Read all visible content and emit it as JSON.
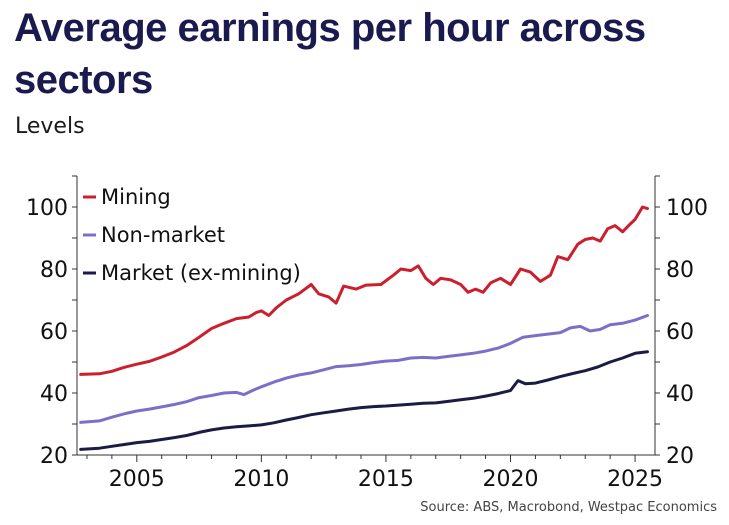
{
  "header": {
    "title": "Average earnings per hour across sectors",
    "subtitle": "Levels"
  },
  "footer": {
    "source": "Source: ABS, Macrobond, Westpac Economics"
  },
  "chart_data": {
    "type": "line",
    "title": "Average earnings per hour across sectors",
    "subtitle": "Levels",
    "xlim": [
      2002.6,
      2025.8
    ],
    "ylim": [
      20,
      110
    ],
    "x_ticks": [
      2005,
      2010,
      2015,
      2020,
      2025
    ],
    "y_ticks": [
      20,
      40,
      60,
      80,
      100
    ],
    "grid": false,
    "legend_position": "top-left",
    "series": [
      {
        "name": "Mining",
        "color": "#cc1f2d",
        "points": [
          [
            2002.75,
            46.0
          ],
          [
            2003.5,
            46.2
          ],
          [
            2004.0,
            47.0
          ],
          [
            2004.5,
            48.3
          ],
          [
            2005.0,
            49.3
          ],
          [
            2005.5,
            50.2
          ],
          [
            2006.0,
            51.6
          ],
          [
            2006.5,
            53.2
          ],
          [
            2007.0,
            55.3
          ],
          [
            2007.5,
            58.0
          ],
          [
            2008.0,
            60.8
          ],
          [
            2008.5,
            62.5
          ],
          [
            2009.0,
            64.0
          ],
          [
            2009.5,
            64.5
          ],
          [
            2009.8,
            66.0
          ],
          [
            2010.0,
            66.5
          ],
          [
            2010.3,
            65.0
          ],
          [
            2010.6,
            67.5
          ],
          [
            2011.0,
            70.0
          ],
          [
            2011.5,
            72.0
          ],
          [
            2012.0,
            75.0
          ],
          [
            2012.3,
            72.0
          ],
          [
            2012.7,
            71.0
          ],
          [
            2013.0,
            69.0
          ],
          [
            2013.3,
            74.5
          ],
          [
            2013.8,
            73.5
          ],
          [
            2014.2,
            74.8
          ],
          [
            2014.8,
            75.0
          ],
          [
            2015.3,
            78.0
          ],
          [
            2015.6,
            80.0
          ],
          [
            2016.0,
            79.5
          ],
          [
            2016.3,
            81.0
          ],
          [
            2016.6,
            77.0
          ],
          [
            2016.9,
            75.0
          ],
          [
            2017.2,
            77.0
          ],
          [
            2017.6,
            76.5
          ],
          [
            2018.0,
            75.0
          ],
          [
            2018.3,
            72.5
          ],
          [
            2018.6,
            73.5
          ],
          [
            2018.9,
            72.5
          ],
          [
            2019.2,
            75.5
          ],
          [
            2019.6,
            77.0
          ],
          [
            2020.0,
            75.0
          ],
          [
            2020.4,
            80.0
          ],
          [
            2020.8,
            79.0
          ],
          [
            2021.2,
            76.0
          ],
          [
            2021.6,
            78.0
          ],
          [
            2021.9,
            84.0
          ],
          [
            2022.3,
            83.0
          ],
          [
            2022.7,
            88.0
          ],
          [
            2023.0,
            89.5
          ],
          [
            2023.3,
            90.0
          ],
          [
            2023.6,
            89.0
          ],
          [
            2023.9,
            93.0
          ],
          [
            2024.2,
            94.0
          ],
          [
            2024.5,
            92.0
          ],
          [
            2024.8,
            94.5
          ],
          [
            2025.0,
            96.0
          ],
          [
            2025.3,
            100.0
          ],
          [
            2025.5,
            99.5
          ]
        ]
      },
      {
        "name": "Non-market",
        "color": "#7b70c8",
        "points": [
          [
            2002.75,
            30.5
          ],
          [
            2003.5,
            31.0
          ],
          [
            2004.0,
            32.2
          ],
          [
            2004.5,
            33.3
          ],
          [
            2005.0,
            34.2
          ],
          [
            2005.5,
            34.8
          ],
          [
            2006.0,
            35.5
          ],
          [
            2006.5,
            36.3
          ],
          [
            2007.0,
            37.2
          ],
          [
            2007.5,
            38.5
          ],
          [
            2008.0,
            39.2
          ],
          [
            2008.5,
            40.0
          ],
          [
            2009.0,
            40.2
          ],
          [
            2009.3,
            39.5
          ],
          [
            2009.7,
            41.0
          ],
          [
            2010.0,
            42.0
          ],
          [
            2010.5,
            43.5
          ],
          [
            2011.0,
            44.8
          ],
          [
            2011.5,
            45.8
          ],
          [
            2012.0,
            46.5
          ],
          [
            2012.5,
            47.5
          ],
          [
            2013.0,
            48.5
          ],
          [
            2013.5,
            48.8
          ],
          [
            2014.0,
            49.2
          ],
          [
            2014.5,
            49.8
          ],
          [
            2015.0,
            50.3
          ],
          [
            2015.5,
            50.5
          ],
          [
            2016.0,
            51.3
          ],
          [
            2016.5,
            51.5
          ],
          [
            2017.0,
            51.3
          ],
          [
            2017.5,
            51.8
          ],
          [
            2018.0,
            52.3
          ],
          [
            2018.5,
            52.8
          ],
          [
            2019.0,
            53.5
          ],
          [
            2019.5,
            54.5
          ],
          [
            2020.0,
            56.0
          ],
          [
            2020.5,
            58.0
          ],
          [
            2021.0,
            58.5
          ],
          [
            2021.5,
            59.0
          ],
          [
            2022.0,
            59.5
          ],
          [
            2022.4,
            61.0
          ],
          [
            2022.8,
            61.5
          ],
          [
            2023.2,
            60.0
          ],
          [
            2023.6,
            60.5
          ],
          [
            2024.0,
            62.0
          ],
          [
            2024.5,
            62.5
          ],
          [
            2025.0,
            63.5
          ],
          [
            2025.5,
            65.0
          ]
        ]
      },
      {
        "name": "Market (ex-mining)",
        "color": "#1b1b44",
        "points": [
          [
            2002.75,
            21.8
          ],
          [
            2003.5,
            22.2
          ],
          [
            2004.0,
            22.8
          ],
          [
            2004.5,
            23.4
          ],
          [
            2005.0,
            24.0
          ],
          [
            2005.5,
            24.4
          ],
          [
            2006.0,
            25.0
          ],
          [
            2006.5,
            25.6
          ],
          [
            2007.0,
            26.3
          ],
          [
            2007.5,
            27.3
          ],
          [
            2008.0,
            28.1
          ],
          [
            2008.5,
            28.7
          ],
          [
            2009.0,
            29.1
          ],
          [
            2009.5,
            29.4
          ],
          [
            2010.0,
            29.7
          ],
          [
            2010.5,
            30.4
          ],
          [
            2011.0,
            31.3
          ],
          [
            2011.5,
            32.1
          ],
          [
            2012.0,
            33.0
          ],
          [
            2012.5,
            33.6
          ],
          [
            2013.0,
            34.2
          ],
          [
            2013.5,
            34.8
          ],
          [
            2014.0,
            35.3
          ],
          [
            2014.5,
            35.6
          ],
          [
            2015.0,
            35.8
          ],
          [
            2015.5,
            36.1
          ],
          [
            2016.0,
            36.4
          ],
          [
            2016.5,
            36.7
          ],
          [
            2017.0,
            36.8
          ],
          [
            2017.5,
            37.3
          ],
          [
            2018.0,
            37.8
          ],
          [
            2018.5,
            38.3
          ],
          [
            2019.0,
            39.0
          ],
          [
            2019.5,
            39.8
          ],
          [
            2020.0,
            40.8
          ],
          [
            2020.3,
            44.0
          ],
          [
            2020.6,
            43.0
          ],
          [
            2021.0,
            43.2
          ],
          [
            2021.5,
            44.2
          ],
          [
            2022.0,
            45.3
          ],
          [
            2022.5,
            46.3
          ],
          [
            2023.0,
            47.2
          ],
          [
            2023.5,
            48.4
          ],
          [
            2024.0,
            50.0
          ],
          [
            2024.5,
            51.3
          ],
          [
            2025.0,
            52.8
          ],
          [
            2025.5,
            53.3
          ]
        ]
      }
    ]
  }
}
